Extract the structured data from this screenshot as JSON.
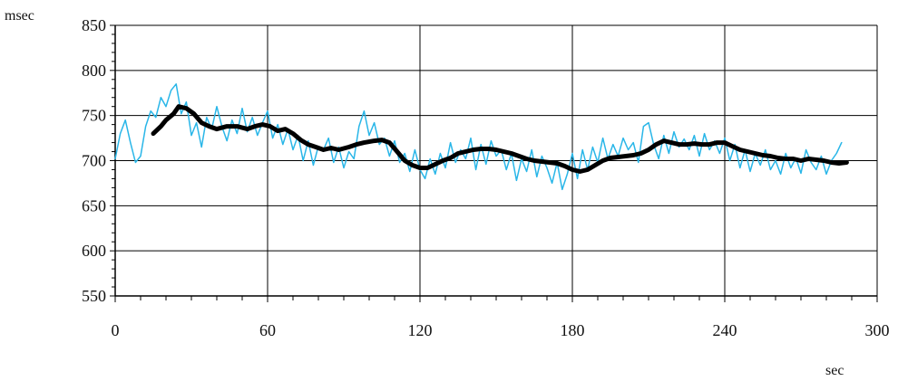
{
  "chart_data": {
    "type": "line",
    "title": "",
    "xlabel": "sec",
    "ylabel": "msec",
    "xlim": [
      0,
      300
    ],
    "ylim": [
      550,
      850
    ],
    "xticks": [
      0,
      60,
      120,
      180,
      240,
      300
    ],
    "yticks": [
      550,
      600,
      650,
      700,
      750,
      800,
      850
    ],
    "x_tick_labels": [
      "0",
      "60",
      "120",
      "180",
      "240",
      "300"
    ],
    "y_tick_labels": [
      "550",
      "600",
      "650",
      "700",
      "750",
      "800",
      "850"
    ],
    "grid": true,
    "legend": "none",
    "colors": {
      "raw": "#29b6e8",
      "smoothed": "#000000",
      "grid": "#000000"
    },
    "series": [
      {
        "color": "#29b6e8",
        "style": "thin",
        "x": [
          0,
          2,
          4,
          6,
          8,
          10,
          12,
          14,
          16,
          18,
          20,
          22,
          24,
          26,
          28,
          30,
          32,
          34,
          36,
          38,
          40,
          42,
          44,
          46,
          48,
          50,
          52,
          54,
          56,
          58,
          60,
          62,
          64,
          66,
          68,
          70,
          72,
          74,
          76,
          78,
          80,
          82,
          84,
          86,
          88,
          90,
          92,
          94,
          96,
          98,
          100,
          102,
          104,
          106,
          108,
          110,
          112,
          114,
          116,
          118,
          120,
          122,
          124,
          126,
          128,
          130,
          132,
          134,
          136,
          138,
          140,
          142,
          144,
          146,
          148,
          150,
          152,
          154,
          156,
          158,
          160,
          162,
          164,
          166,
          168,
          170,
          172,
          174,
          176,
          178,
          180,
          182,
          184,
          186,
          188,
          190,
          192,
          194,
          196,
          198,
          200,
          202,
          204,
          206,
          208,
          210,
          212,
          214,
          216,
          218,
          220,
          222,
          224,
          226,
          228,
          230,
          232,
          234,
          236,
          238,
          240,
          242,
          244,
          246,
          248,
          250,
          252,
          254,
          256,
          258,
          260,
          262,
          264,
          266,
          268,
          270,
          272,
          274,
          276,
          278,
          280,
          282,
          284,
          286
        ],
        "y": [
          702,
          730,
          745,
          720,
          698,
          705,
          738,
          755,
          748,
          770,
          760,
          778,
          785,
          752,
          765,
          728,
          742,
          715,
          748,
          735,
          760,
          738,
          722,
          745,
          730,
          758,
          732,
          748,
          728,
          742,
          755,
          725,
          740,
          718,
          735,
          712,
          728,
          700,
          722,
          695,
          716,
          712,
          725,
          698,
          715,
          692,
          710,
          702,
          738,
          755,
          728,
          742,
          718,
          725,
          705,
          722,
          698,
          708,
          688,
          712,
          690,
          680,
          702,
          685,
          708,
          692,
          720,
          698,
          712,
          702,
          725,
          690,
          718,
          696,
          722,
          705,
          712,
          690,
          708,
          678,
          702,
          688,
          712,
          682,
          705,
          692,
          675,
          698,
          668,
          685,
          708,
          680,
          712,
          690,
          715,
          698,
          725,
          702,
          718,
          705,
          725,
          712,
          720,
          698,
          738,
          742,
          718,
          702,
          728,
          708,
          732,
          715,
          724,
          712,
          728,
          705,
          730,
          712,
          722,
          708,
          725,
          700,
          718,
          692,
          712,
          688,
          708,
          695,
          712,
          690,
          700,
          685,
          708,
          692,
          703,
          686,
          712,
          698,
          690,
          705,
          685,
          700,
          708,
          720
        ]
      },
      {
        "color": "#000000",
        "style": "thick",
        "x": [
          15,
          18,
          20,
          23,
          25,
          28,
          31,
          34,
          37,
          40,
          44,
          48,
          52,
          55,
          58,
          61,
          64,
          67,
          70,
          73,
          76,
          79,
          82,
          85,
          88,
          92,
          95,
          98,
          102,
          105,
          108,
          111,
          114,
          117,
          120,
          123,
          126,
          129,
          132,
          135,
          138,
          141,
          144,
          147,
          150,
          153,
          156,
          159,
          162,
          165,
          168,
          171,
          174,
          177,
          180,
          183,
          186,
          189,
          192,
          195,
          198,
          201,
          204,
          207,
          210,
          213,
          216,
          219,
          222,
          225,
          228,
          231,
          234,
          237,
          240,
          243,
          246,
          249,
          252,
          255,
          258,
          261,
          264,
          267,
          270,
          273,
          276,
          279,
          282,
          285,
          288
        ],
        "y": [
          730,
          738,
          745,
          752,
          760,
          758,
          752,
          742,
          738,
          735,
          738,
          738,
          735,
          738,
          740,
          738,
          733,
          735,
          730,
          723,
          718,
          715,
          712,
          714,
          712,
          715,
          718,
          720,
          722,
          723,
          720,
          710,
          700,
          695,
          692,
          692,
          696,
          700,
          703,
          708,
          710,
          712,
          713,
          713,
          712,
          710,
          708,
          705,
          702,
          700,
          699,
          698,
          697,
          694,
          690,
          688,
          690,
          695,
          700,
          703,
          704,
          705,
          706,
          708,
          712,
          718,
          722,
          720,
          718,
          718,
          719,
          718,
          718,
          720,
          720,
          716,
          712,
          710,
          708,
          706,
          705,
          703,
          702,
          702,
          700,
          702,
          701,
          700,
          698,
          697,
          698
        ]
      }
    ]
  }
}
